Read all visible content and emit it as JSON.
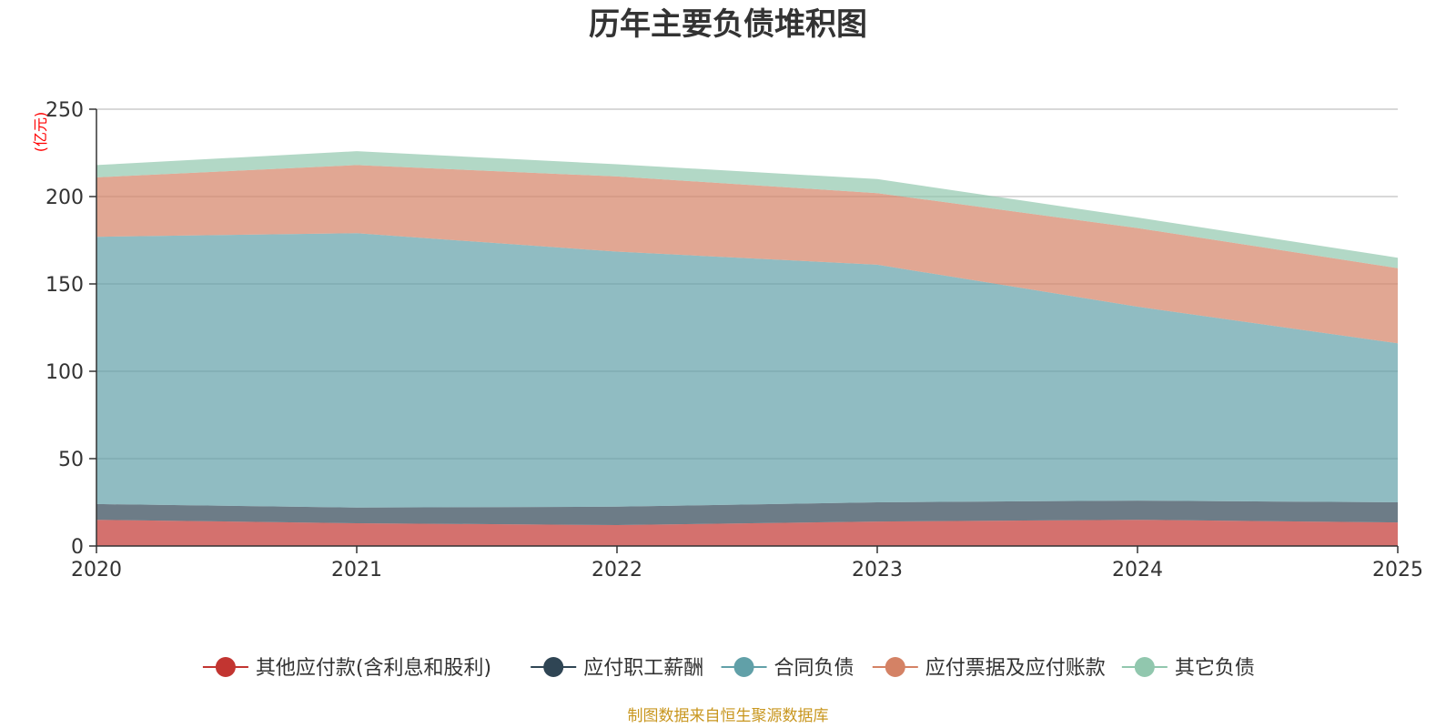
{
  "chart_data": {
    "type": "area",
    "stacked": true,
    "title": "历年主要负债堆积图",
    "ylabel": "(亿元)",
    "xlabel": "",
    "ylim": [
      0,
      250
    ],
    "yticks": [
      0,
      50,
      100,
      150,
      200,
      250
    ],
    "categories": [
      "2020",
      "2021",
      "2022",
      "2023",
      "2024",
      "2025"
    ],
    "series": [
      {
        "name": "其他应付款(含利息和股利)",
        "color": "#c23531",
        "values": [
          15,
          13,
          12,
          14,
          15,
          13.5
        ]
      },
      {
        "name": "应付职工薪酬",
        "color": "#2f4554",
        "values": [
          9,
          9,
          10.5,
          11,
          11,
          11.5
        ]
      },
      {
        "name": "合同负债",
        "color": "#61a0a8",
        "values": [
          153,
          157,
          146,
          136,
          111,
          91
        ]
      },
      {
        "name": "应付票据及应付账款",
        "color": "#d48265",
        "values": [
          34,
          39,
          43,
          41,
          45,
          43
        ]
      },
      {
        "name": "其它负债",
        "color": "#91c7ae",
        "values": [
          7,
          8,
          7,
          8,
          6,
          6
        ]
      }
    ],
    "legend_position": "bottom",
    "grid": true
  },
  "footer": {
    "source": "制图数据来自恒生聚源数据库",
    "color": "#c8961e"
  },
  "colors": {
    "axis": "#333333",
    "grid": "#cccccc",
    "unit": "#ff0000"
  }
}
